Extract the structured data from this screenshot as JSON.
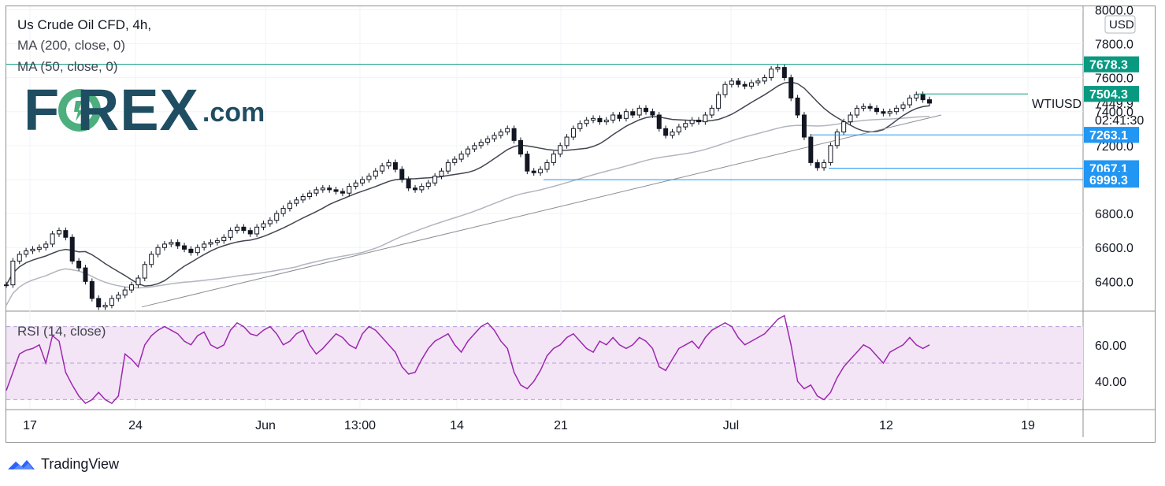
{
  "chart_title": "Us Crude Oil CFD, 4h,",
  "indicators": [
    "MA (200, close, 0)",
    "MA (50, close, 0)"
  ],
  "rsi_label": "RSI (14, close)",
  "currency": "USD",
  "symbol_label": "WTIUSD",
  "countdown": "02:41:30",
  "brand": {
    "logo_letters": "F   REX",
    "logo_suffix": ".com",
    "footer": "TradingView"
  },
  "colors": {
    "candle": "#131722",
    "ma50": "#434651",
    "ma200": "#b2b5be",
    "trendline": "#8a8d95",
    "green_level": "#089981",
    "blue_level": "#2196f3",
    "rsi": "#9c27b0",
    "rsi_band": "#f3e5f5",
    "logo": "#1f4e63"
  },
  "chart_data": [
    {
      "type": "line",
      "title": "Us Crude Oil CFD, 4h,",
      "ylim": [
        6230,
        8020
      ],
      "y_ticks": [
        "8000.0",
        "7800.0",
        "7600.0",
        "7400.0",
        "7200.0",
        "7000.0",
        "6800.0",
        "6600.0",
        "6400.0"
      ],
      "x_ticks": [
        "17",
        "24",
        "Jun",
        "13:00",
        "14",
        "21",
        "Jul",
        "12",
        "19"
      ],
      "series": [
        {
          "values": [
            6380,
            6520,
            6560,
            6580,
            6590,
            6600,
            6620,
            6680,
            6700,
            6660,
            6520,
            6480,
            6400,
            6300,
            6250,
            6260,
            6300,
            6320,
            6350,
            6380,
            6420,
            6500,
            6560,
            6600,
            6620,
            6630,
            6610,
            6590,
            6570,
            6600,
            6620,
            6630,
            6640,
            6660,
            6700,
            6720,
            6700,
            6680,
            6720,
            6740,
            6760,
            6800,
            6830,
            6860,
            6880,
            6900,
            6920,
            6940,
            6950,
            6940,
            6930,
            6920,
            6960,
            6980,
            7000,
            7020,
            7050,
            7080,
            7100,
            7060,
            7000,
            6950,
            6940,
            6960,
            6980,
            7020,
            7050,
            7100,
            7120,
            7150,
            7180,
            7200,
            7220,
            7240,
            7260,
            7280,
            7300,
            7230,
            7150,
            7050,
            7040,
            7060,
            7100,
            7150,
            7200,
            7250,
            7300,
            7330,
            7350,
            7360,
            7340,
            7350,
            7380,
            7360,
            7400,
            7380,
            7420,
            7400,
            7380,
            7300,
            7260,
            7280,
            7310,
            7330,
            7350,
            7340,
            7380,
            7420,
            7500,
            7560,
            7580,
            7560,
            7550,
            7570,
            7580,
            7600,
            7650,
            7660,
            7600,
            7480,
            7380,
            7250,
            7100,
            7070,
            7100,
            7200,
            7280,
            7340,
            7380,
            7420,
            7430,
            7420,
            7400,
            7390,
            7400,
            7420,
            7440,
            7480,
            7500,
            7470,
            7450
          ]
        }
      ],
      "horizontal_levels": [
        {
          "label": "7678.3",
          "value": 7678.3,
          "color": "green"
        },
        {
          "label": "7504.3",
          "value": 7504.3,
          "color": "green"
        },
        {
          "label": "7449.9",
          "value": 7449.9,
          "color": "none"
        },
        {
          "label": "7263.1",
          "value": 7263.1,
          "color": "blue"
        },
        {
          "label": "7067.1",
          "value": 7067.1,
          "color": "blue"
        },
        {
          "label": "6999.3",
          "value": 6999.3,
          "color": "blue"
        }
      ]
    },
    {
      "type": "line",
      "title": "RSI (14, close)",
      "ylim": [
        25,
        78
      ],
      "y_ticks": [
        "60.00",
        "40.00"
      ],
      "band": [
        30,
        70
      ],
      "series": [
        {
          "values": [
            35,
            45,
            55,
            57,
            58,
            60,
            50,
            65,
            62,
            45,
            38,
            32,
            28,
            30,
            34,
            30,
            28,
            32,
            55,
            52,
            48,
            60,
            65,
            68,
            70,
            68,
            66,
            62,
            60,
            65,
            67,
            60,
            58,
            60,
            68,
            72,
            70,
            66,
            65,
            68,
            70,
            66,
            60,
            62,
            66,
            68,
            60,
            55,
            58,
            62,
            66,
            64,
            60,
            58,
            66,
            70,
            68,
            64,
            60,
            56,
            48,
            44,
            45,
            52,
            58,
            62,
            64,
            66,
            60,
            56,
            62,
            66,
            70,
            72,
            68,
            62,
            58,
            45,
            38,
            36,
            40,
            46,
            54,
            58,
            60,
            64,
            66,
            62,
            58,
            56,
            62,
            60,
            64,
            60,
            58,
            60,
            64,
            62,
            58,
            48,
            46,
            52,
            58,
            60,
            62,
            58,
            64,
            68,
            70,
            72,
            70,
            64,
            60,
            62,
            64,
            66,
            70,
            74,
            76,
            60,
            40,
            36,
            38,
            32,
            30,
            34,
            42,
            48,
            52,
            56,
            60,
            58,
            54,
            50,
            56,
            58,
            60,
            64,
            60,
            58,
            60
          ]
        }
      ]
    }
  ]
}
